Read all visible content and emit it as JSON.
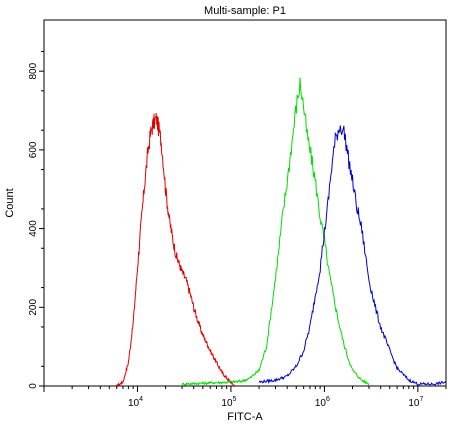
{
  "chart_data": {
    "type": "line",
    "title": "Multi-sample: P1",
    "xlabel": "FITC-A",
    "ylabel": "Count",
    "x_scale": "log",
    "xlim": [
      1000,
      20000000
    ],
    "ylim": [
      0,
      930
    ],
    "y_ticks": [
      0,
      200,
      400,
      600,
      800
    ],
    "y_tick_labels": [
      "0",
      "200",
      "400",
      "600",
      "800"
    ],
    "x_ticks": [
      10000,
      100000,
      1000000,
      10000000
    ],
    "x_tick_labels": [
      {
        "base": "10",
        "exp": "4"
      },
      {
        "base": "10",
        "exp": "5"
      },
      {
        "base": "10",
        "exp": "6"
      },
      {
        "base": "10",
        "exp": "7"
      }
    ],
    "grid": false,
    "series": [
      {
        "color": "#e00000",
        "x": [
          6000,
          7000,
          8000,
          9000,
          10000,
          11000,
          12000,
          13000,
          14000,
          15000,
          16000,
          17000,
          18000,
          19000,
          20000,
          22000,
          24000,
          26000,
          28000,
          30000,
          33000,
          36000,
          40000,
          45000,
          50000,
          55000,
          60000,
          70000,
          80000,
          90000,
          100000,
          110000
        ],
        "y": [
          0,
          10,
          60,
          160,
          300,
          420,
          520,
          600,
          650,
          670,
          680,
          650,
          620,
          560,
          500,
          420,
          370,
          330,
          310,
          290,
          270,
          240,
          200,
          160,
          130,
          110,
          90,
          60,
          35,
          20,
          10,
          0
        ]
      },
      {
        "color": "#00dd00",
        "x": [
          30000,
          60000,
          100000,
          130000,
          160000,
          200000,
          240000,
          280000,
          320000,
          360000,
          400000,
          450000,
          500000,
          550000,
          600000,
          650000,
          700000,
          750000,
          800000,
          900000,
          1000000,
          1100000,
          1200000,
          1400000,
          1600000,
          1800000,
          2000000,
          2500000,
          3000000
        ],
        "y": [
          5,
          8,
          10,
          12,
          20,
          40,
          100,
          220,
          330,
          440,
          520,
          620,
          710,
          770,
          710,
          640,
          600,
          560,
          520,
          430,
          370,
          300,
          250,
          170,
          110,
          70,
          40,
          15,
          5
        ]
      },
      {
        "color": "#0000cc",
        "x": [
          200000,
          300000,
          400000,
          500000,
          600000,
          700000,
          800000,
          900000,
          1000000,
          1100000,
          1200000,
          1300000,
          1400000,
          1500000,
          1600000,
          1700000,
          1800000,
          2000000,
          2200000,
          2500000,
          3000000,
          3500000,
          4000000,
          5000000,
          6000000,
          8000000,
          10000000,
          15000000,
          20000000
        ],
        "y": [
          10,
          15,
          25,
          50,
          90,
          150,
          230,
          300,
          390,
          470,
          560,
          620,
          650,
          660,
          650,
          620,
          580,
          520,
          460,
          400,
          270,
          200,
          150,
          90,
          45,
          15,
          5,
          5,
          10
        ]
      }
    ]
  }
}
